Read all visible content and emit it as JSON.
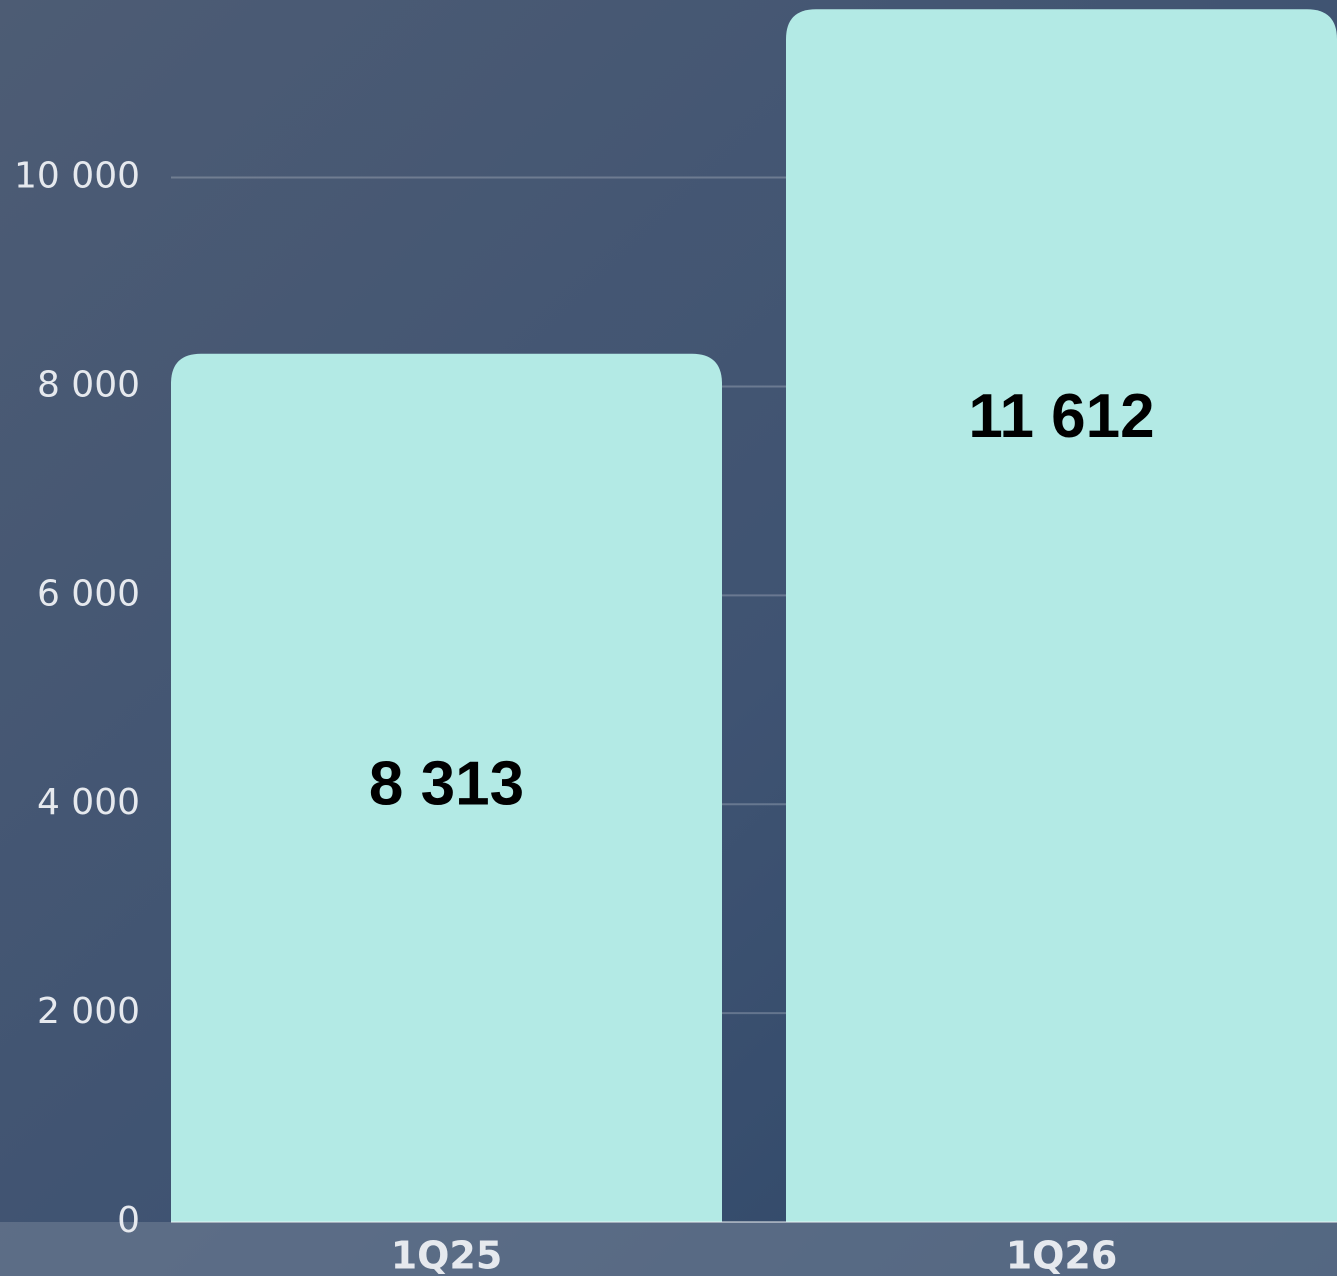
{
  "chart_data": {
    "type": "bar",
    "categories": [
      "1Q25",
      "1Q26"
    ],
    "values": [
      8313,
      11612
    ],
    "value_labels": [
      "8 313",
      "11 612"
    ],
    "color": "#b3eae5",
    "ylim": [
      0,
      11700
    ],
    "yticks": [
      0,
      {
        "value": 2000,
        "label": "2 000"
      },
      {
        "value": 4000,
        "label": "4 000"
      },
      {
        "value": 6000,
        "label": "6 000"
      },
      {
        "value": 8000,
        "label": "8 000"
      },
      {
        "value": 10000,
        "label": "10 000"
      }
    ],
    "grid": true
  }
}
